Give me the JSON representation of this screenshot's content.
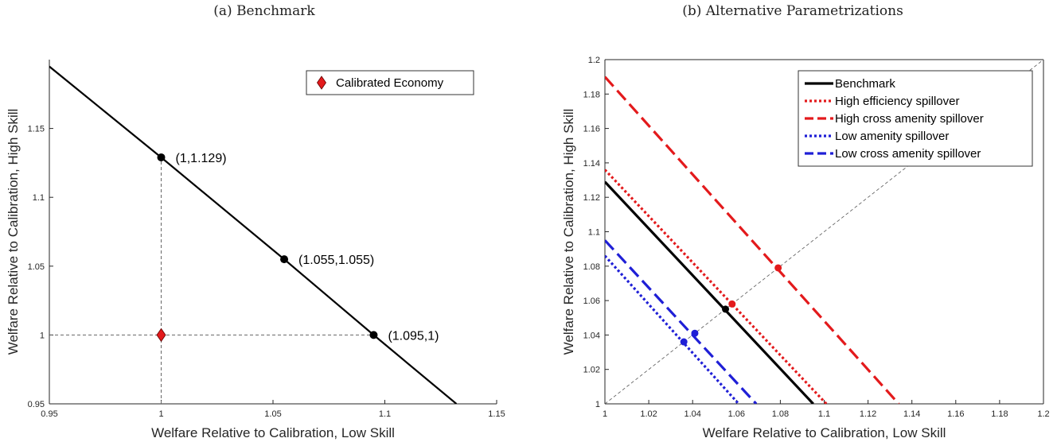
{
  "panels": {
    "a": {
      "title": "(a) Benchmark"
    },
    "b": {
      "title": "(b) Alternative Parametrizations"
    }
  },
  "colors": {
    "black": "#000000",
    "red": "#e31a1c",
    "blue": "#1f1fd6",
    "grid_dash": "#666666"
  },
  "chart_data": [
    {
      "type": "line",
      "title": "(a) Benchmark",
      "xlabel": "Welfare Relative to Calibration, Low Skill",
      "ylabel": "Welfare Relative to Calibration, High Skill",
      "xlim": [
        0.95,
        1.15
      ],
      "ylim": [
        0.95,
        1.2
      ],
      "xticks": [
        "0.95",
        "1",
        "1.05",
        "1.1",
        "1.15"
      ],
      "xtick_values": [
        0.95,
        1.0,
        1.05,
        1.1,
        1.15
      ],
      "yticks": [
        "0.95",
        "1",
        "1.05",
        "1.1",
        "1.15"
      ],
      "ytick_values": [
        0.95,
        1.0,
        1.05,
        1.1,
        1.15
      ],
      "grid": false,
      "legend_position": "top-right",
      "series": [
        {
          "kind": "line",
          "color": "#000000",
          "dash": "solid",
          "x": [
            0.95,
            1.0,
            1.055,
            1.095,
            1.132
          ],
          "y": [
            1.195,
            1.129,
            1.055,
            1.0,
            0.95
          ]
        }
      ],
      "reference_lines": [
        {
          "x": [
            1.0,
            1.0
          ],
          "y": [
            0.95,
            1.129
          ]
        },
        {
          "x": [
            0.95,
            1.095
          ],
          "y": [
            1.0,
            1.0
          ]
        }
      ],
      "points": [
        {
          "x": 1.0,
          "y": 1.129,
          "label": "(1,1.129)",
          "color": "#000000"
        },
        {
          "x": 1.055,
          "y": 1.055,
          "label": "(1.055,1.055)",
          "color": "#000000"
        },
        {
          "x": 1.095,
          "y": 1.0,
          "label": "(1.095,1)",
          "color": "#000000"
        }
      ],
      "markers": [
        {
          "x": 1.0,
          "y": 1.0,
          "name": "Calibrated Economy",
          "shape": "diamond",
          "color": "#e31a1c"
        }
      ],
      "legend": [
        "Calibrated Economy"
      ]
    },
    {
      "type": "line",
      "title": "(b) Alternative Parametrizations",
      "xlabel": "Welfare Relative to Calibration, Low Skill",
      "ylabel": "Welfare Relative to Calibration, High Skill",
      "xlim": [
        1.0,
        1.2
      ],
      "ylim": [
        1.0,
        1.2
      ],
      "xticks": [
        "1",
        "1.02",
        "1.04",
        "1.06",
        "1.08",
        "1.1",
        "1.12",
        "1.14",
        "1.16",
        "1.18",
        "1.2"
      ],
      "xtick_values": [
        1.0,
        1.02,
        1.04,
        1.06,
        1.08,
        1.1,
        1.12,
        1.14,
        1.16,
        1.18,
        1.2
      ],
      "yticks": [
        "1",
        "1.02",
        "1.04",
        "1.06",
        "1.08",
        "1.1",
        "1.12",
        "1.14",
        "1.16",
        "1.18",
        "1.2"
      ],
      "ytick_values": [
        1.0,
        1.02,
        1.04,
        1.06,
        1.08,
        1.1,
        1.12,
        1.14,
        1.16,
        1.18,
        1.2
      ],
      "grid": false,
      "legend_position": "top-right",
      "diagonal": {
        "x": [
          1.0,
          1.2
        ],
        "y": [
          1.0,
          1.2
        ]
      },
      "series": [
        {
          "name": "Benchmark",
          "color": "#000000",
          "dash": "solid",
          "x": [
            1.0,
            1.095
          ],
          "y": [
            1.129,
            1.0
          ],
          "point": [
            1.055,
            1.055
          ]
        },
        {
          "name": "High efficiency spillover",
          "color": "#e31a1c",
          "dash": "dotted",
          "x": [
            1.0,
            1.101
          ],
          "y": [
            1.136,
            1.0
          ],
          "point": [
            1.058,
            1.058
          ]
        },
        {
          "name": "High cross amenity spillover",
          "color": "#e31a1c",
          "dash": "dashed",
          "x": [
            1.0,
            1.134
          ],
          "y": [
            1.19,
            1.0
          ],
          "point": [
            1.079,
            1.079
          ]
        },
        {
          "name": "Low amenity spillover",
          "color": "#1f1fd6",
          "dash": "dotted",
          "x": [
            1.0,
            1.061
          ],
          "y": [
            1.086,
            1.0
          ],
          "point": [
            1.036,
            1.036
          ]
        },
        {
          "name": "Low cross amenity spillover",
          "color": "#1f1fd6",
          "dash": "dashed",
          "x": [
            1.0,
            1.069
          ],
          "y": [
            1.095,
            1.0
          ],
          "point": [
            1.041,
            1.041
          ]
        }
      ]
    }
  ]
}
